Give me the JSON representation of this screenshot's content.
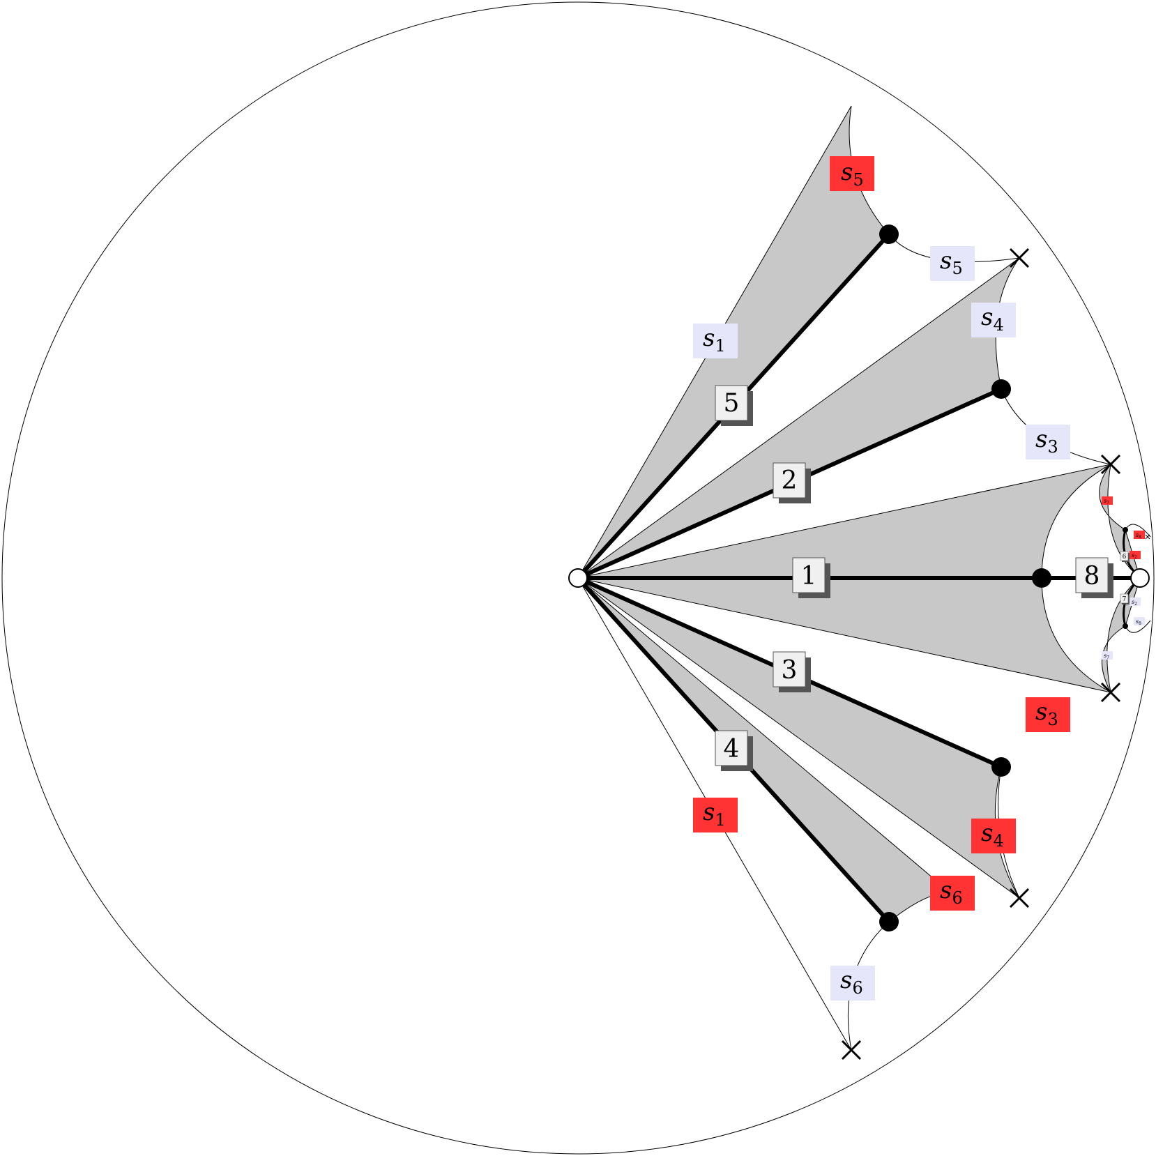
{
  "colors": {
    "region_fill": "#c8c8c8",
    "edge": "#000000",
    "blue_label_bg": "#e6e6fa",
    "red_label_bg": "#ff3333",
    "edge_label_bg": "#f0f0f0",
    "edge_label_shadow": "#555555"
  },
  "edge_labels": {
    "e1": "1",
    "e2": "2",
    "e3": "3",
    "e4": "4",
    "e5": "5",
    "e8": "8",
    "e6": "6",
    "e7": "7"
  },
  "side_labels": {
    "s1_top": {
      "base": "s",
      "sub": "1",
      "color": "blue"
    },
    "s1_bottom": {
      "base": "s",
      "sub": "1",
      "color": "red"
    },
    "s5_red": {
      "base": "s",
      "sub": "5",
      "color": "red"
    },
    "s5_blue": {
      "base": "s",
      "sub": "5",
      "color": "blue"
    },
    "s4_blue": {
      "base": "s",
      "sub": "4",
      "color": "blue"
    },
    "s3_blue": {
      "base": "s",
      "sub": "3",
      "color": "blue"
    },
    "s3_red": {
      "base": "s",
      "sub": "3",
      "color": "red"
    },
    "s4_red": {
      "base": "s",
      "sub": "4",
      "color": "red"
    },
    "s6_red": {
      "base": "s",
      "sub": "6",
      "color": "red"
    },
    "s6_blue": {
      "base": "s",
      "sub": "6",
      "color": "blue"
    },
    "s7_red": {
      "base": "s",
      "sub": "7",
      "color": "red"
    },
    "s8_red": {
      "base": "s",
      "sub": "8",
      "color": "red"
    },
    "s2_red": {
      "base": "s",
      "sub": "2",
      "color": "red"
    },
    "s2_blue": {
      "base": "s",
      "sub": "2",
      "color": "blue"
    },
    "s8_blue": {
      "base": "s",
      "sub": "8",
      "color": "blue"
    },
    "s7_blue": {
      "base": "s",
      "sub": "7",
      "color": "blue"
    }
  }
}
